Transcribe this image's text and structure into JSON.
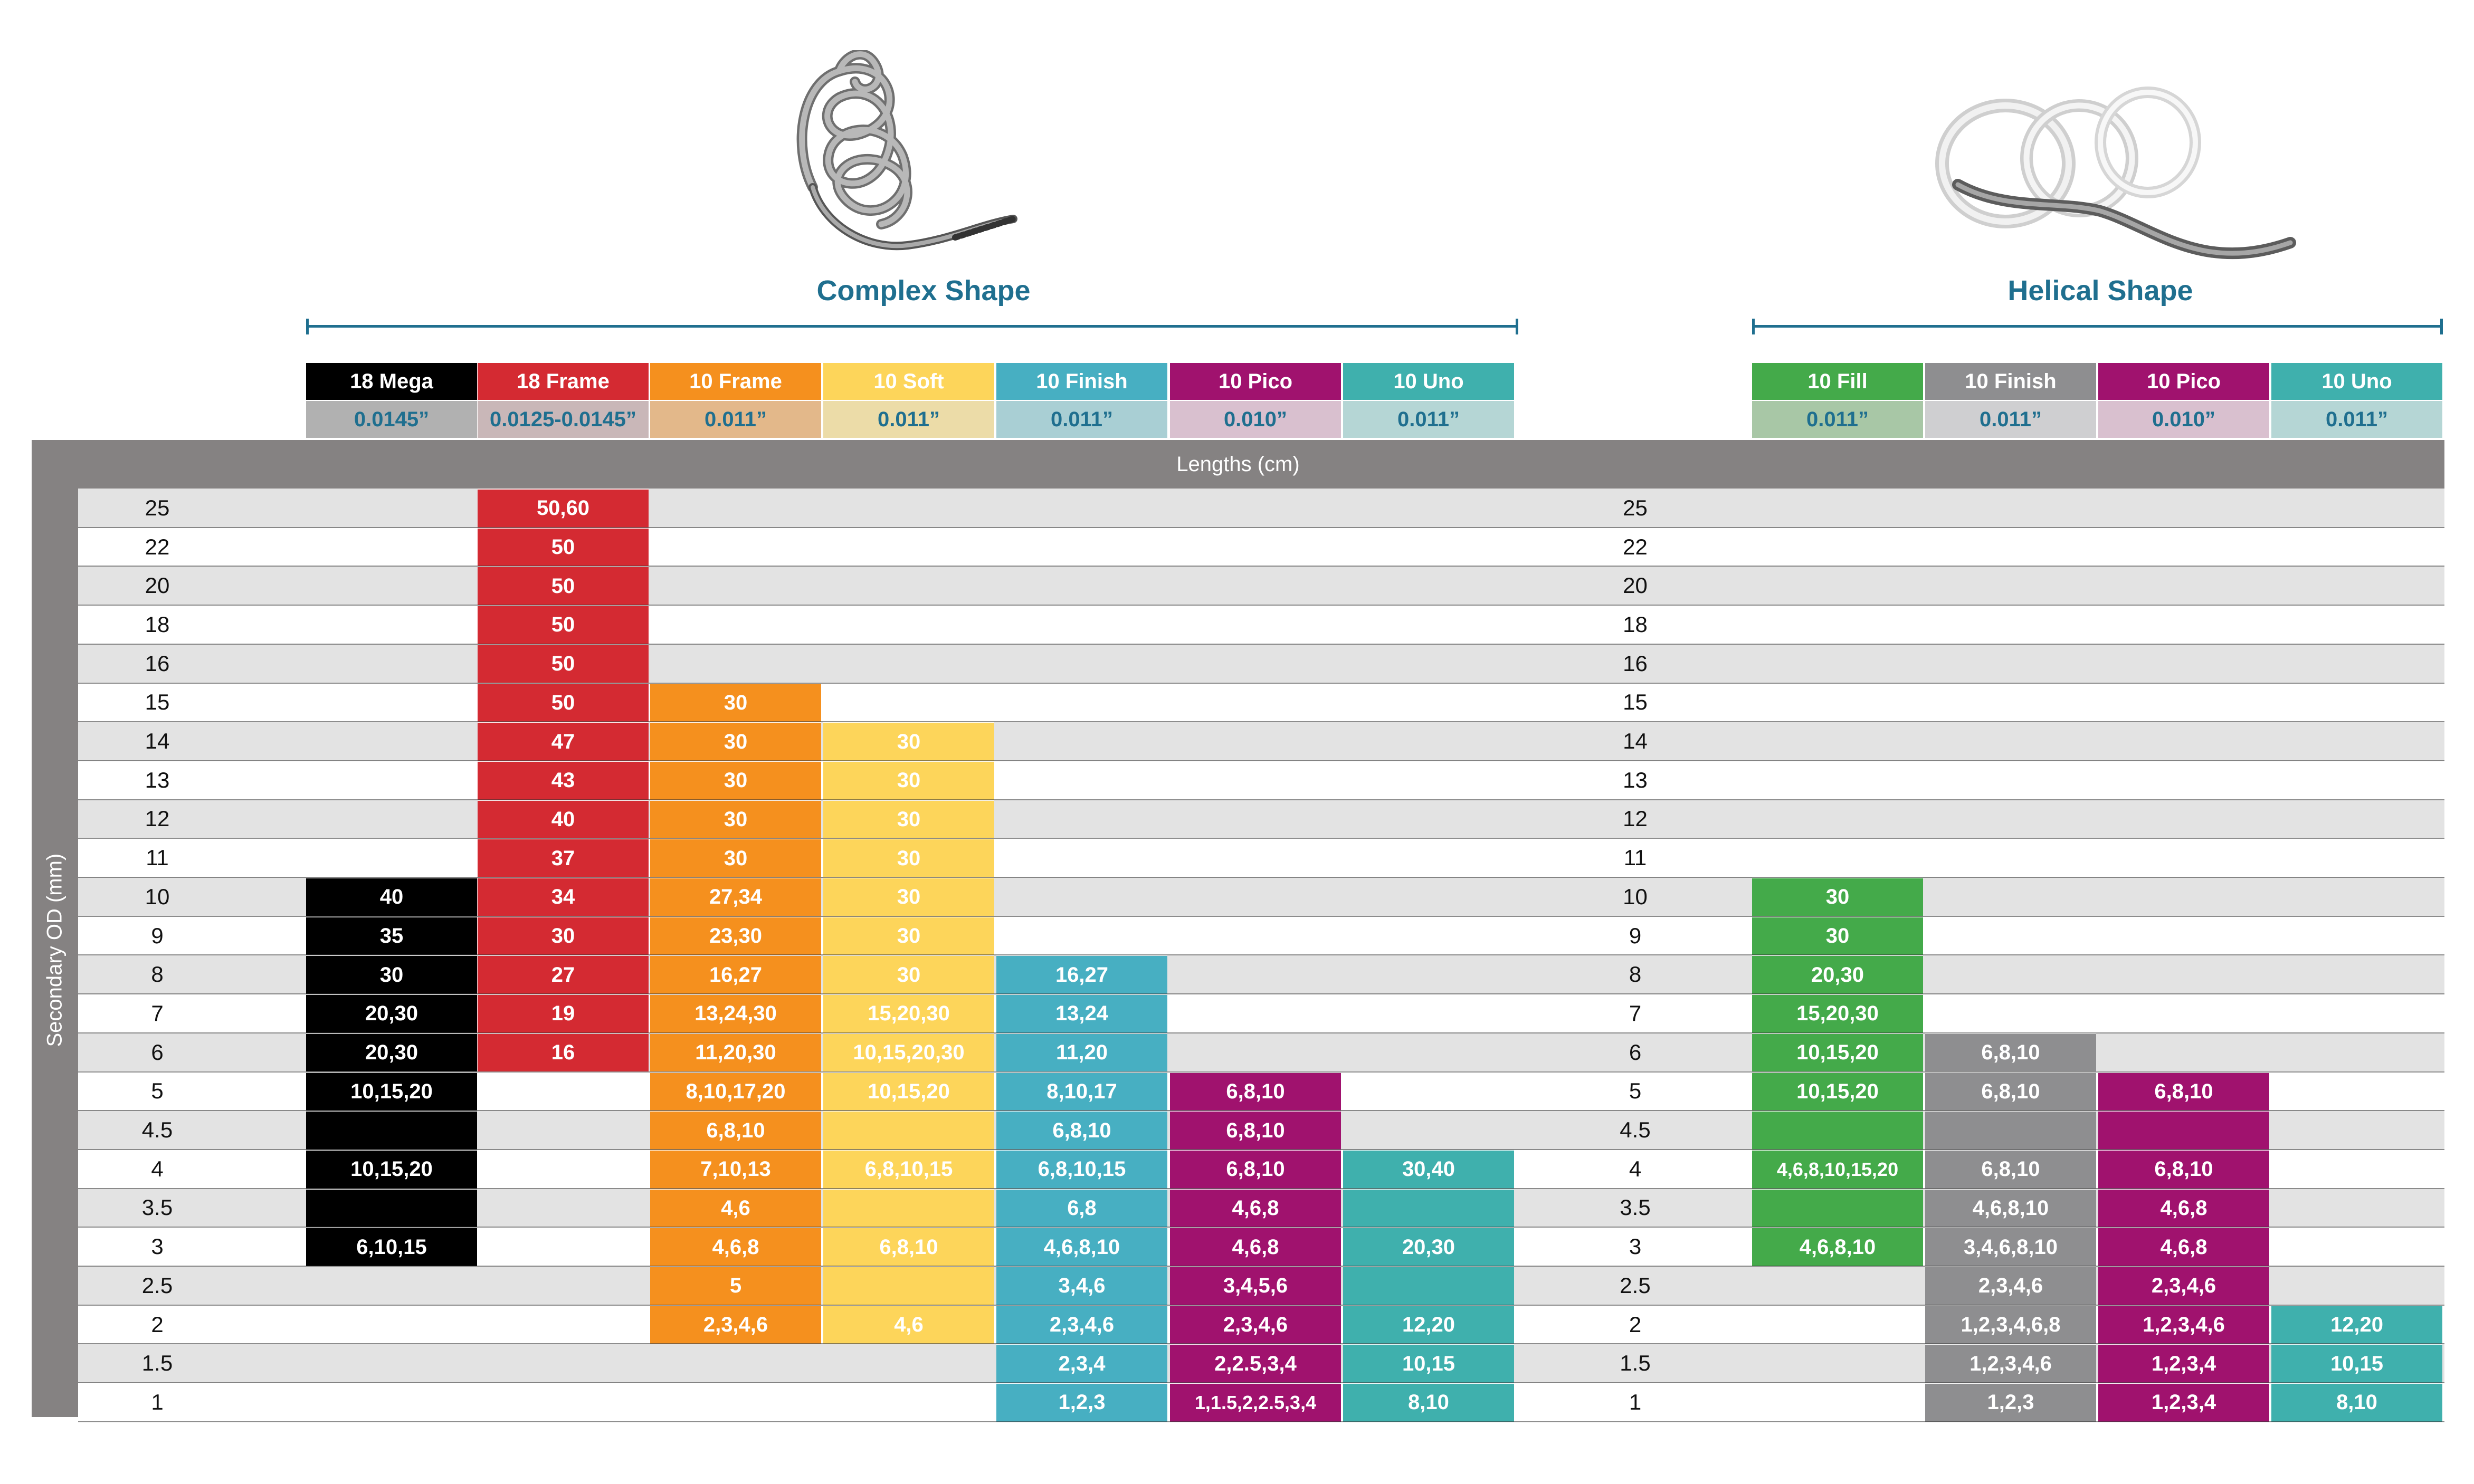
{
  "sections": [
    {
      "title": "Complex Shape"
    },
    {
      "title": "Helical Shape"
    }
  ],
  "header": {
    "lengths_label": "Lengths (cm)",
    "y_axis_label": "Secondary OD (mm)"
  },
  "colors": {
    "band_gray": "#e3e3e3",
    "frame_gray": "#858282",
    "accent_blue": "#1f6f8f"
  },
  "products": [
    {
      "name": "18 Mega",
      "size": "0.0145”",
      "color": "#000000",
      "size_bg": "#b1b1b1",
      "size_color": "#1f6f8f"
    },
    {
      "name": "18 Frame",
      "size": "0.0125-0.0145”",
      "color": "#d42a32",
      "size_bg": "#c9b7b8",
      "size_color": "#1f6f8f"
    },
    {
      "name": "10 Frame",
      "size": "0.011”",
      "color": "#f5901e",
      "size_bg": "#e3b88a",
      "size_color": "#1f6f8f"
    },
    {
      "name": "10 Soft",
      "size": "0.011”",
      "color": "#fdd55a",
      "size_bg": "#ecdca8",
      "size_color": "#1f6f8f"
    },
    {
      "name": "10 Finish",
      "size": "0.011”",
      "color": "#47afc2",
      "size_bg": "#a9cfd4",
      "size_color": "#1f6f8f"
    },
    {
      "name": "10 Pico",
      "size": "0.010”",
      "color": "#a0126e",
      "size_bg": "#d9c0cf",
      "size_color": "#1f6f8f"
    },
    {
      "name": "10 Uno",
      "size": "0.011”",
      "color": "#3fb0ad",
      "size_bg": "#b5d6d5",
      "size_color": "#1f6f8f"
    },
    {
      "name": "10 Fill",
      "size": "0.011”",
      "color": "#44aa4a",
      "size_bg": "#a8c7a6",
      "size_color": "#1f6f8f"
    },
    {
      "name": "10 Finish",
      "size": "0.011”",
      "color": "#8e8e90",
      "size_bg": "#cfcfd1",
      "size_color": "#1f6f8f"
    },
    {
      "name": "10 Pico",
      "size": "0.010”",
      "color": "#a0126e",
      "size_bg": "#d9c0cf",
      "size_color": "#1f6f8f"
    },
    {
      "name": "10 Uno",
      "size": "0.011”",
      "color": "#3fb0ad",
      "size_bg": "#b5d6d5",
      "size_color": "#1f6f8f"
    }
  ],
  "chart_data": {
    "type": "table",
    "title": "Lengths (cm)",
    "row_axis_label": "Secondary OD (mm)",
    "rows": [
      "25",
      "22",
      "20",
      "18",
      "16",
      "15",
      "14",
      "13",
      "12",
      "11",
      "10",
      "9",
      "8",
      "7",
      "6",
      "5",
      "4.5",
      "4",
      "3.5",
      "3",
      "2.5",
      "2",
      "1.5",
      "1"
    ],
    "columns": [
      "18 Mega",
      "18 Frame",
      "10 Frame",
      "10 Soft",
      "10 Finish",
      "10 Pico",
      "10 Uno",
      "10 Fill",
      "10 Finish",
      "10 Pico",
      "10 Uno"
    ],
    "groups": [
      {
        "name": "Complex Shape",
        "columns": [
          "18 Mega",
          "18 Frame",
          "10 Frame",
          "10 Soft",
          "10 Finish",
          "10 Pico",
          "10 Uno"
        ]
      },
      {
        "name": "Helical Shape",
        "columns": [
          "10 Fill",
          "10 Finish",
          "10 Pico",
          "10 Uno"
        ]
      }
    ],
    "cells": [
      [
        "",
        "50,60",
        "",
        "",
        "",
        "",
        "",
        "",
        "",
        "",
        ""
      ],
      [
        "",
        "50",
        "",
        "",
        "",
        "",
        "",
        "",
        "",
        "",
        ""
      ],
      [
        "",
        "50",
        "",
        "",
        "",
        "",
        "",
        "",
        "",
        "",
        ""
      ],
      [
        "",
        "50",
        "",
        "",
        "",
        "",
        "",
        "",
        "",
        "",
        ""
      ],
      [
        "",
        "50",
        "",
        "",
        "",
        "",
        "",
        "",
        "",
        "",
        ""
      ],
      [
        "",
        "50",
        "30",
        "",
        "",
        "",
        "",
        "",
        "",
        "",
        ""
      ],
      [
        "",
        "47",
        "30",
        "30",
        "",
        "",
        "",
        "",
        "",
        "",
        ""
      ],
      [
        "",
        "43",
        "30",
        "30",
        "",
        "",
        "",
        "",
        "",
        "",
        ""
      ],
      [
        "",
        "40",
        "30",
        "30",
        "",
        "",
        "",
        "",
        "",
        "",
        ""
      ],
      [
        "",
        "37",
        "30",
        "30",
        "",
        "",
        "",
        "",
        "",
        "",
        ""
      ],
      [
        "40",
        "34",
        "27,34",
        "30",
        "",
        "",
        "",
        "30",
        "",
        "",
        ""
      ],
      [
        "35",
        "30",
        "23,30",
        "30",
        "",
        "",
        "",
        "30",
        "",
        "",
        ""
      ],
      [
        "30",
        "27",
        "16,27",
        "30",
        "16,27",
        "",
        "",
        "20,30",
        "",
        "",
        ""
      ],
      [
        "20,30",
        "19",
        "13,24,30",
        "15,20,30",
        "13,24",
        "",
        "",
        "15,20,30",
        "",
        "",
        ""
      ],
      [
        "20,30",
        "16",
        "11,20,30",
        "10,15,20,30",
        "11,20",
        "",
        "",
        "10,15,20",
        "6,8,10",
        "",
        ""
      ],
      [
        "10,15,20",
        "",
        "8,10,17,20",
        "10,15,20",
        "8,10,17",
        "6,8,10",
        "",
        "10,15,20",
        "6,8,10",
        "6,8,10",
        ""
      ],
      [
        "",
        "",
        "6,8,10",
        "",
        "6,8,10",
        "6,8,10",
        "",
        "",
        "",
        "",
        ""
      ],
      [
        "10,15,20",
        "",
        "7,10,13",
        "6,8,10,15",
        "6,8,10,15",
        "6,8,10",
        "30,40",
        "4,6,8,10,15,20",
        "6,8,10",
        "6,8,10",
        ""
      ],
      [
        "",
        "",
        "4,6",
        "",
        "6,8",
        "4,6,8",
        "",
        "",
        "4,6,8,10",
        "4,6,8",
        ""
      ],
      [
        "6,10,15",
        "",
        "4,6,8",
        "6,8,10",
        "4,6,8,10",
        "4,6,8",
        "20,30",
        "4,6,8,10",
        "3,4,6,8,10",
        "4,6,8",
        ""
      ],
      [
        "",
        "",
        "5",
        "",
        "3,4,6",
        "3,4,5,6",
        "",
        "",
        "2,3,4,6",
        "2,3,4,6",
        ""
      ],
      [
        "",
        "",
        "2,3,4,6",
        "4,6",
        "2,3,4,6",
        "2,3,4,6",
        "12,20",
        "",
        "1,2,3,4,6,8",
        "1,2,3,4,6",
        "12,20"
      ],
      [
        "",
        "",
        "",
        "",
        "2,3,4",
        "2,2.5,3,4",
        "10,15",
        "",
        "1,2,3,4,6",
        "1,2,3,4",
        "10,15"
      ],
      [
        "",
        "",
        "",
        "",
        "1,2,3",
        "1,1.5,2,2.5,3,4",
        "8,10",
        "",
        "1,2,3",
        "1,2,3,4",
        "8,10"
      ]
    ],
    "filled_spans": [
      {
        "column": 0,
        "from_row": "10",
        "to_row": "3"
      },
      {
        "column": 1,
        "from_row": "25",
        "to_row": "6"
      },
      {
        "column": 2,
        "from_row": "15",
        "to_row": "2"
      },
      {
        "column": 3,
        "from_row": "14",
        "to_row": "2"
      },
      {
        "column": 4,
        "from_row": "8",
        "to_row": "1"
      },
      {
        "column": 5,
        "from_row": "5",
        "to_row": "1"
      },
      {
        "column": 6,
        "from_row": "4",
        "to_row": "1"
      },
      {
        "column": 7,
        "from_row": "10",
        "to_row": "3"
      },
      {
        "column": 8,
        "from_row": "6",
        "to_row": "1"
      },
      {
        "column": 9,
        "from_row": "5",
        "to_row": "1"
      },
      {
        "column": 10,
        "from_row": "2",
        "to_row": "1"
      }
    ]
  }
}
